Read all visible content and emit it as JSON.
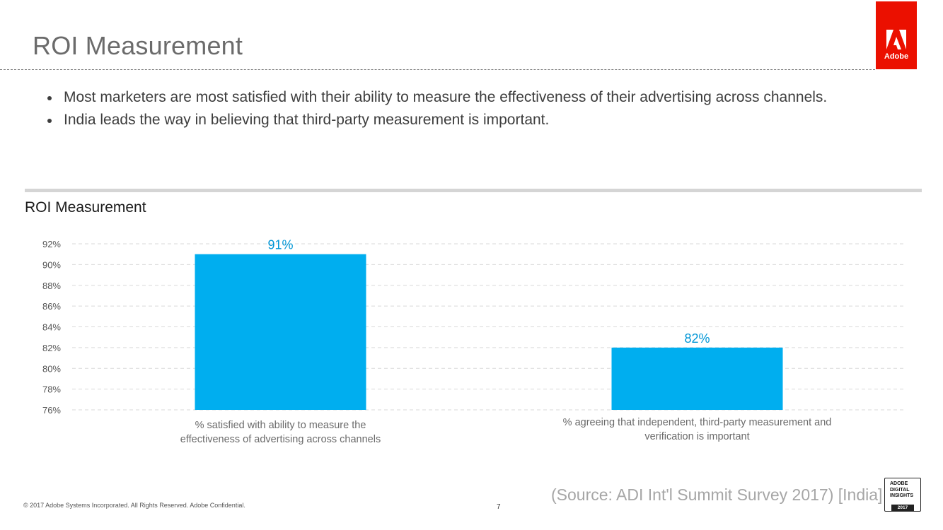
{
  "page": {
    "title": "ROI Measurement",
    "bullets": [
      "Most marketers are most satisfied with their ability to measure the effectiveness of their advertising across channels.",
      "India leads the way in believing that third-party measurement is important."
    ]
  },
  "logo": {
    "word": "Adobe",
    "icon": "adobe-logo-icon"
  },
  "badge": {
    "line1": "ADOBE",
    "line2": "DIGITAL",
    "line3": "INSIGHTS",
    "year": "2017"
  },
  "footer": {
    "copyright": "© 2017 Adobe Systems Incorporated.  All Rights Reserved.  Adobe Confidential.",
    "page_number": "7",
    "source": "(Source: ADI Int'l Summit Survey 2017) [India]"
  },
  "colors": {
    "bar": "#00aeef",
    "label": "#0096d6",
    "grid": "#d9d9d9",
    "axis_text": "#555555"
  },
  "chart_data": {
    "type": "bar",
    "title": "ROI Measurement",
    "categories": [
      [
        "% satisfied with ability to measure the",
        "effectiveness of advertising across channels"
      ],
      [
        "% agreeing that independent, third-party measurement and",
        "verification is important"
      ]
    ],
    "values": [
      91,
      82
    ],
    "data_labels": [
      "91%",
      "82%"
    ],
    "yticks": [
      76,
      78,
      80,
      82,
      84,
      86,
      88,
      90,
      92
    ],
    "ytick_labels": [
      "76%",
      "78%",
      "80%",
      "82%",
      "84%",
      "86%",
      "88%",
      "90%",
      "92%"
    ],
    "ylim": [
      76,
      92
    ],
    "xlabel": "",
    "ylabel": "",
    "grid": true
  }
}
